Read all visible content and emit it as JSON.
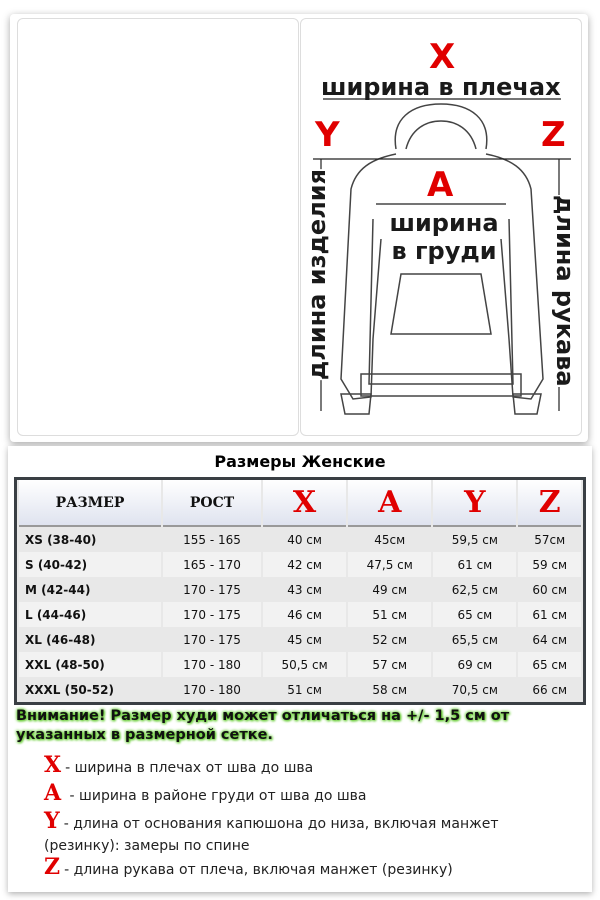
{
  "diagram": {
    "x": "X",
    "x_label": "ширина в плечах",
    "a": "A",
    "a_label_1": "ширина",
    "a_label_2": "в груди",
    "y": "Y",
    "y_label": "длина изделия",
    "z": "Z",
    "z_label": "длина рукава"
  },
  "title": "Размеры Женские",
  "table": {
    "headers": [
      "РАЗМЕР",
      "РОСТ",
      "X",
      "A",
      "Y",
      "Z"
    ],
    "rows": [
      [
        "XS (38-40)",
        "155 - 165",
        "40 см",
        "45см",
        "59,5 см",
        "57см"
      ],
      [
        "S (40-42)",
        "165 - 170",
        "42 см",
        "47,5 см",
        "61 см",
        "59 см"
      ],
      [
        "M (42-44)",
        "170 - 175",
        "43 см",
        "49 см",
        "62,5 см",
        "60 см"
      ],
      [
        "L (44-46)",
        "170 - 175",
        "46 см",
        "51 см",
        "65 см",
        "61 см"
      ],
      [
        "XL (46-48)",
        "170 - 175",
        "45 см",
        "52 см",
        "65,5 см",
        "64 см"
      ],
      [
        "XXL (48-50)",
        "170 - 180",
        "50,5 см",
        "57 см",
        "69 см",
        "65 см"
      ],
      [
        "XXXL (50-52)",
        "170 - 180",
        "51 см",
        "58 см",
        "70,5 см",
        "66 см"
      ]
    ]
  },
  "warning": "Внимание! Размер худи может отличаться на +/- 1,5 см от указанных в размерной сетке.",
  "legend": [
    {
      "letter": "X",
      "text": "- ширина в плечах от шва до шва"
    },
    {
      "letter": "A",
      "text": " - ширина в районе груди от шва до шва"
    },
    {
      "letter": "Y",
      "text": "- длина от основания капюшона до низа, включая манжет (резинку): замеры по спине"
    },
    {
      "letter": "Z",
      "text": "- длина рукава от плеча, включая манжет (резинку)"
    }
  ],
  "colors": {
    "accent": "#e00000",
    "warning_glow": "#66cc33"
  }
}
